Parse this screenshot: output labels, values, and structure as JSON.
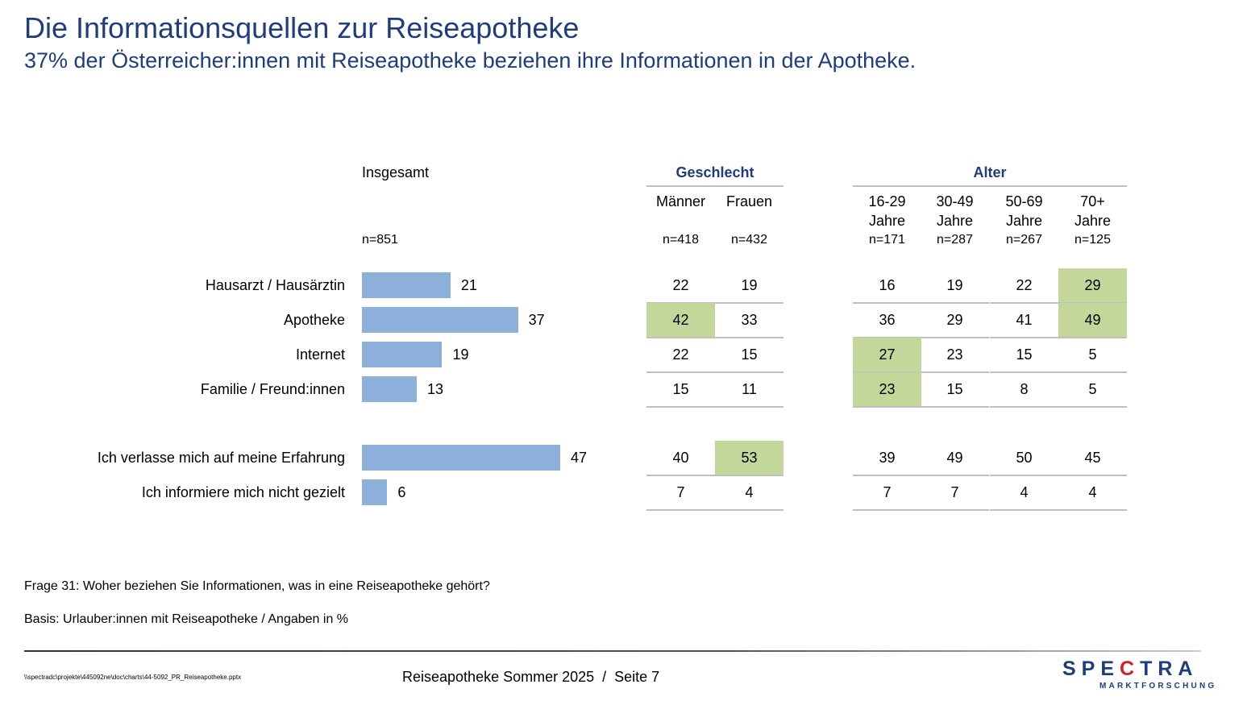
{
  "title": "Die Informationsquellen zur Reiseapotheke",
  "subtitle": "37% der Österreicher:innen mit Reiseapotheke beziehen ihre Informationen in der Apotheke.",
  "chart_data": {
    "type": "table",
    "total": {
      "label": "Insgesamt",
      "n": "n=851"
    },
    "groups": [
      {
        "label": "Geschlecht",
        "columns": [
          {
            "label": "Männer",
            "n": "n=418"
          },
          {
            "label": "Frauen",
            "n": "n=432"
          }
        ]
      },
      {
        "label": "Alter",
        "columns": [
          {
            "label": "16-29 Jahre",
            "l1": "16-29",
            "l2": "Jahre",
            "n": "n=171"
          },
          {
            "label": "30-49 Jahre",
            "l1": "30-49",
            "l2": "Jahre",
            "n": "n=287"
          },
          {
            "label": "50-69 Jahre",
            "l1": "50-69",
            "l2": "Jahre",
            "n": "n=267"
          },
          {
            "label": "70+ Jahre",
            "l1": "70+",
            "l2": "Jahre",
            "n": "n=125"
          }
        ]
      }
    ],
    "bar_color": "#8db0da",
    "highlight_color": "#c4d79b",
    "rows": [
      {
        "label": "Hausarzt / Hausärztin",
        "total": 21,
        "values": [
          22,
          19,
          16,
          19,
          22,
          29
        ],
        "highlight": [
          false,
          false,
          false,
          false,
          false,
          true
        ]
      },
      {
        "label": "Apotheke",
        "total": 37,
        "values": [
          42,
          33,
          36,
          29,
          41,
          49
        ],
        "highlight": [
          true,
          false,
          false,
          false,
          false,
          true
        ]
      },
      {
        "label": "Internet",
        "total": 19,
        "values": [
          22,
          15,
          27,
          23,
          15,
          5
        ],
        "highlight": [
          false,
          false,
          true,
          false,
          false,
          false
        ]
      },
      {
        "label": "Familie / Freund:innen",
        "total": 13,
        "values": [
          15,
          11,
          23,
          15,
          8,
          5
        ],
        "highlight": [
          false,
          false,
          true,
          false,
          false,
          false
        ]
      },
      {
        "label": "Ich verlasse mich auf meine Erfahrung",
        "total": 47,
        "values": [
          40,
          53,
          39,
          49,
          50,
          45
        ],
        "highlight": [
          false,
          true,
          false,
          false,
          false,
          false
        ]
      },
      {
        "label": "Ich informiere mich nicht gezielt",
        "total": 6,
        "values": [
          7,
          4,
          7,
          7,
          4,
          4
        ],
        "highlight": [
          false,
          false,
          false,
          false,
          false,
          false
        ]
      }
    ]
  },
  "notes": {
    "question": "Frage 31: Woher beziehen Sie Informationen, was in eine Reiseapotheke gehört?",
    "basis": "Basis: Urlauber:innen mit Reiseapotheke / Angaben in %"
  },
  "footer": {
    "path": "\\\\spectradc\\projekte\\445092ne\\doc\\charts\\44-5092_PR_Reiseapotheke.pptx",
    "center": "Reiseapotheke Sommer 2025  /  Seite 7"
  },
  "logo": {
    "line1": "SPECTRA",
    "line2": "MARKTFORSCHUNG"
  }
}
